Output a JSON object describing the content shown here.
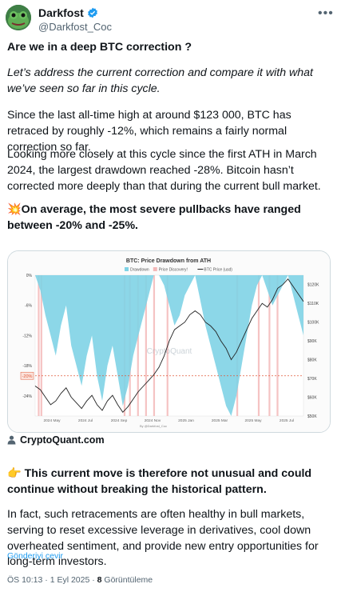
{
  "tweet": {
    "display_name": "Darkfost",
    "handle": "@Darkfost_Coc",
    "more_icon": "more-horizontal-icon",
    "verified_color": "#1d9bf0",
    "title": "Are we in a deep BTC correction ?",
    "intro": "Let’s address the current correction and compare it with what we’ve seen so far in this cycle.",
    "para1": "Since the last all-time high at around $123 000, BTC has retraced by roughly -12%, which remains a fairly normal correction so far.",
    "para2": "Looking more closely at this cycle since the first ATH in March 2024, the largest drawdown reached -28%. Bitcoin hasn’t corrected more deeply than that during the current bull market.",
    "highlight_emoji": "💥",
    "highlight": "On average, the most severe pullbacks have ranged between -20% and -25%.",
    "point_emoji": "👉",
    "point": "This current move is therefore not unusual and could continue without breaking the historical pattern.",
    "para3": "In fact, such retracements are often healthy in bull markets, serving to reset excessive leverage in derivatives, cool down overheated sentiment, and provide new entry opportunities for long-term investors.",
    "translate": "Gönderiyi çevir",
    "time": "ÖS 10:13 · 1 Eyl 2025 · ",
    "views_count": "8",
    "views_label": " Görüntüleme",
    "card_source": "CryptoQuant.com"
  },
  "chart_data": {
    "type": "area",
    "title": "BTC: Price Drawdown from ATH",
    "legend": [
      "Drawdown",
      "Price Discovery!",
      "BTC Price (usd)"
    ],
    "legend_position": "top",
    "colors": {
      "drawdown": "#7fd3e6",
      "price_discovery": "#f3b8b8",
      "price": "#222222",
      "threshold": "#e05a3a"
    },
    "left_axis_ticks": [
      "0%",
      "-6%",
      "-12%",
      "-18%",
      "-24%"
    ],
    "right_axis_ticks": [
      "$120K",
      "$110K",
      "$100K",
      "$90K",
      "$80K",
      "$70K",
      "$60K",
      "$50K"
    ],
    "x_ticks": [
      "2024 May",
      "2024 Jul",
      "2024 Sep",
      "2024 Nov",
      "2025 Jan",
      "2025 Mar",
      "2025 May",
      "2025 Jul"
    ],
    "threshold_label": "-20%",
    "threshold_value": -20,
    "y_left_range": [
      -28,
      0
    ],
    "y_right_range": [
      50000,
      125000
    ],
    "watermark": "CryptoQuant",
    "source_note": "By @Darkfost_Coc",
    "drawdown_pct": [
      0,
      -3,
      -8,
      -12,
      -16,
      -10,
      -6,
      -14,
      -18,
      -22,
      -16,
      -12,
      -20,
      -25,
      -18,
      -14,
      -20,
      -26,
      -22,
      -16,
      -12,
      -8,
      -4,
      0,
      0,
      -2,
      -6,
      -10,
      -8,
      -4,
      -2,
      0,
      -5,
      -10,
      -14,
      -18,
      -22,
      -26,
      -28,
      -24,
      -18,
      -12,
      -6,
      -2,
      0,
      -3,
      -6,
      -4,
      -2,
      0,
      -4,
      -8,
      -12
    ],
    "price_k": [
      66,
      64,
      60,
      56,
      58,
      62,
      65,
      60,
      57,
      54,
      58,
      61,
      56,
      53,
      58,
      61,
      56,
      52,
      55,
      59,
      63,
      66,
      69,
      72,
      76,
      82,
      90,
      96,
      98,
      100,
      104,
      106,
      104,
      100,
      98,
      95,
      90,
      86,
      80,
      84,
      90,
      96,
      102,
      106,
      110,
      108,
      112,
      118,
      120,
      123,
      119,
      115,
      111
    ],
    "price_discovery_x": [
      0.01,
      0.02,
      0.33,
      0.35,
      0.38,
      0.41,
      0.44,
      0.49,
      0.75,
      0.83,
      0.87,
      0.9
    ]
  }
}
